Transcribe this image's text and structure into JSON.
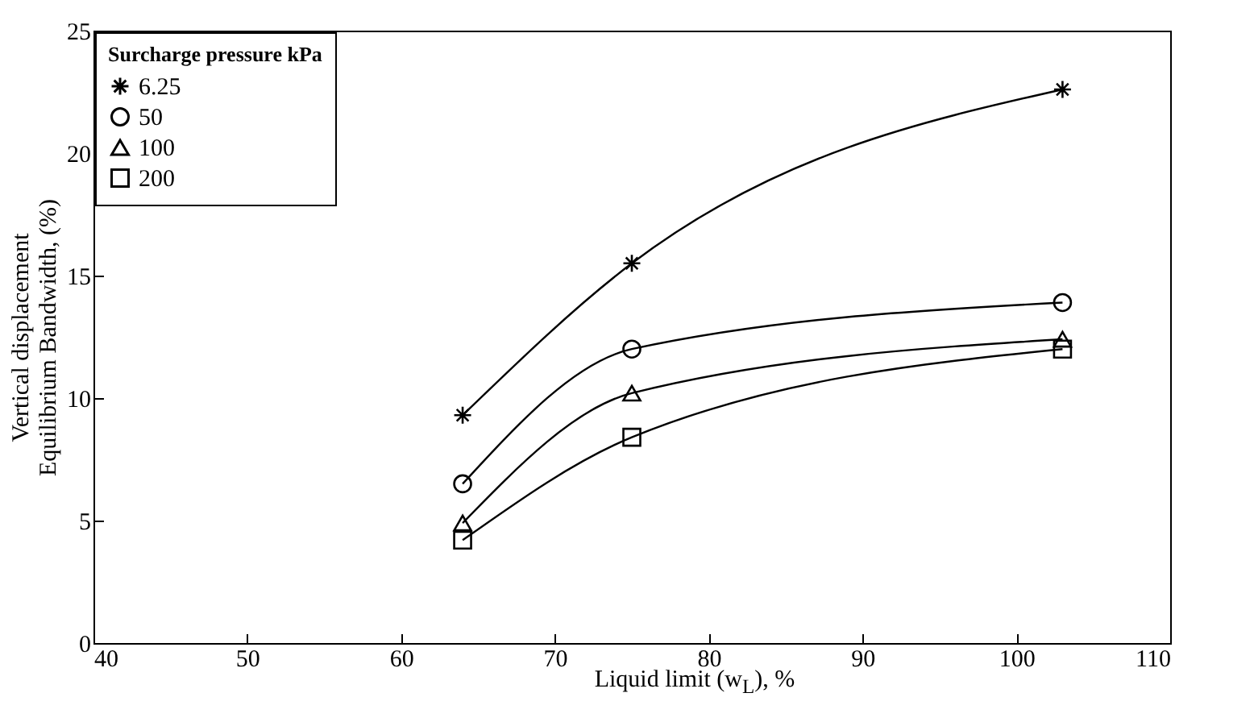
{
  "chart_data": {
    "type": "line",
    "xlabel": "Liquid limit (w$_{L}$),  %",
    "ylabel": "Vertical displacement\nEquilibrium Bandwidth, (%)",
    "legend_title": "Surcharge pressure kPa",
    "legend": "top left",
    "grid": false,
    "line_style": "solid",
    "x": [
      64,
      75,
      103
    ],
    "xlim": [
      40,
      110
    ],
    "xticks": [
      40,
      50,
      60,
      70,
      80,
      90,
      100,
      110
    ],
    "ylim": [
      0,
      25
    ],
    "yticks": [
      0,
      5,
      10,
      15,
      20,
      25
    ],
    "series": [
      {
        "name": "6.25",
        "color": "#000000",
        "marker": "cross",
        "values": [
          9.3,
          15.5,
          22.6
        ]
      },
      {
        "name": "50",
        "color": "#000000",
        "marker": "circle",
        "values": [
          6.5,
          12.0,
          13.9
        ]
      },
      {
        "name": "100",
        "color": "#000000",
        "marker": "triangle",
        "values": [
          4.9,
          10.2,
          12.4
        ]
      },
      {
        "name": "200",
        "color": "#000000",
        "marker": "square",
        "values": [
          4.2,
          8.4,
          12.0
        ]
      }
    ]
  }
}
